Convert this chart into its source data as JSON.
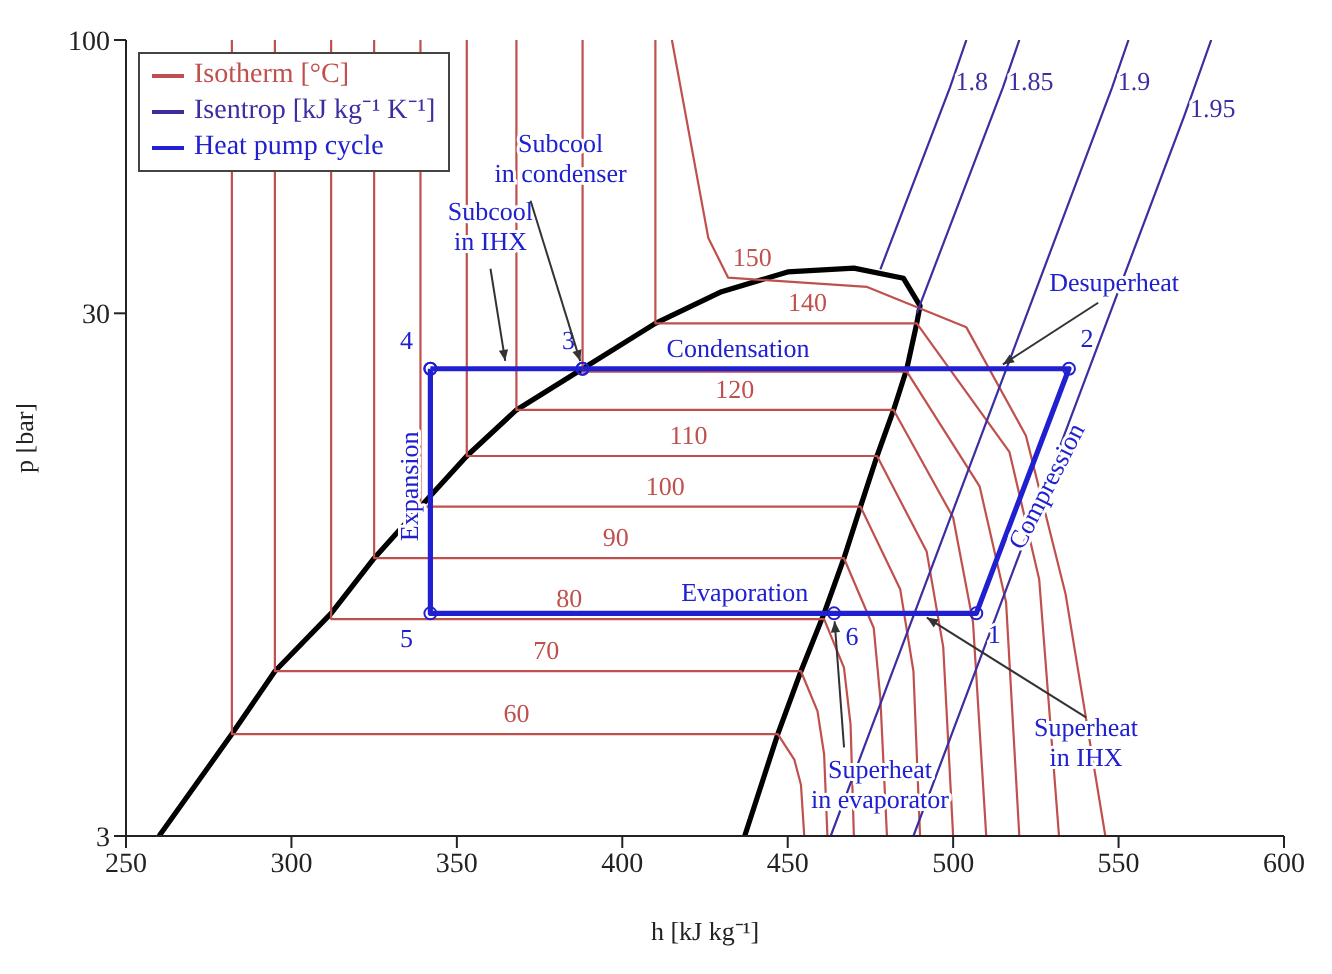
{
  "chart_data": {
    "type": "line",
    "xlabel": "h [kJ kg⁻¹]",
    "ylabel": "p [bar]",
    "xlim": [
      250,
      600
    ],
    "xticks": [
      250,
      300,
      350,
      400,
      450,
      500,
      550,
      600
    ],
    "ylim": [
      3,
      100
    ],
    "yticks": [
      3,
      30,
      100
    ],
    "log": "y",
    "grid": false,
    "legend": "top left",
    "line_style": "solid",
    "marker": "none",
    "series": [
      {
        "color": "#000000",
        "x": [
          260,
          282,
          295,
          312,
          325,
          339,
          353,
          368,
          388,
          410,
          430,
          450,
          470,
          485,
          490,
          489,
          486,
          482,
          477,
          472,
          467,
          461,
          454,
          447,
          437
        ],
        "values": [
          3,
          4.7,
          6.2,
          8,
          10.2,
          12.8,
          16,
          19.6,
          23.5,
          28.7,
          33,
          36,
          36.6,
          35,
          31,
          28.7,
          23.5,
          19.6,
          16,
          12.8,
          10.2,
          8,
          6.2,
          4.7,
          3
        ]
      },
      {
        "name": "Isotherm [°C]",
        "color": "#c0504d",
        "x": [
          282,
          282,
          368,
          447,
          452,
          454,
          455
        ],
        "values": [
          100,
          4.7,
          4.7,
          4.7,
          4.2,
          3.76,
          3
        ]
      },
      {
        "color": "#c0504d",
        "x": [
          295,
          295,
          377,
          454,
          459,
          461,
          462
        ],
        "values": [
          100,
          6.2,
          6.2,
          6.2,
          5.2,
          4.3,
          3
        ]
      },
      {
        "color": "#c0504d",
        "x": [
          312,
          312,
          384,
          461,
          467,
          469,
          470
        ],
        "values": [
          100,
          7.8,
          7.8,
          7.8,
          6.3,
          4.9,
          3
        ]
      },
      {
        "color": "#c0504d",
        "x": [
          325,
          325,
          398,
          467,
          476,
          478,
          480
        ],
        "values": [
          100,
          10.2,
          10.2,
          10.2,
          7.5,
          5.5,
          3
        ]
      },
      {
        "color": "#c0504d",
        "x": [
          339,
          339,
          413,
          472,
          484,
          488,
          490
        ],
        "values": [
          100,
          12.8,
          12.8,
          12.8,
          8.9,
          6.2,
          3
        ]
      },
      {
        "color": "#c0504d",
        "x": [
          353,
          353,
          420,
          477,
          492,
          497,
          500
        ],
        "values": [
          100,
          16,
          16,
          16,
          10.5,
          6.9,
          3
        ]
      },
      {
        "color": "#c0504d",
        "x": [
          368,
          368,
          434,
          482,
          500,
          506,
          510
        ],
        "values": [
          100,
          19.6,
          19.6,
          19.6,
          12.2,
          7.7,
          3
        ]
      },
      {
        "color": "#c0504d",
        "x": [
          388,
          388,
          486,
          508,
          516,
          520
        ],
        "values": [
          100,
          23.2,
          23.2,
          14,
          8.4,
          3
        ]
      },
      {
        "color": "#c0504d",
        "x": [
          410,
          410,
          456,
          489,
          517,
          526,
          532
        ],
        "values": [
          100,
          28.7,
          28.7,
          28.7,
          16.3,
          9.3,
          3
        ]
      },
      {
        "color": "#c0504d",
        "x": [
          415,
          426,
          432,
          474,
          504,
          522,
          534,
          546
        ],
        "values": [
          100,
          41.8,
          35.1,
          33.7,
          28.2,
          17.5,
          8.7,
          3
        ]
      },
      {
        "name": "Isentrop [kJ kg⁻¹ K⁻¹]",
        "color": "#3b2fa0",
        "x": [
          504,
          499,
          478
        ],
        "values": [
          100,
          81,
          36.4
        ]
      },
      {
        "color": "#3b2fa0",
        "x": [
          520,
          515,
          489
        ],
        "values": [
          100,
          81,
          30
        ]
      },
      {
        "color": "#3b2fa0",
        "x": [
          553,
          548,
          463
        ],
        "values": [
          100,
          81,
          3
        ]
      },
      {
        "color": "#3b2fa0",
        "x": [
          578,
          570,
          488
        ],
        "values": [
          100,
          72,
          3
        ]
      },
      {
        "name": "Heat pump cycle",
        "color": "#2020d0",
        "marker": "circle",
        "x": [
          342,
          342,
          464,
          507,
          535,
          388
        ],
        "values": [
          23.5,
          8,
          8,
          8,
          23.5,
          23.5
        ]
      },
      {
        "color": "#2020d0",
        "marker": "circle",
        "x": [
          388,
          342
        ],
        "values": [
          23.5,
          23.5
        ]
      }
    ],
    "annotations": [
      {
        "text": "Condensation",
        "x": 435,
        "y": 23.5
      },
      {
        "text": "Evaporation",
        "x": 437,
        "y": 8
      },
      {
        "text": "Expansion",
        "x": 342,
        "y": 14
      },
      {
        "text": "Compression",
        "x": 521,
        "y": 13.7
      },
      {
        "text": "1",
        "x": 507,
        "y": 8
      },
      {
        "text": "2",
        "x": 535,
        "y": 23.5
      },
      {
        "text": "3",
        "x": 388,
        "y": 23.5
      },
      {
        "text": "4",
        "x": 342,
        "y": 23.5
      },
      {
        "text": "5",
        "x": 342,
        "y": 8
      },
      {
        "text": "6",
        "x": 464,
        "y": 8
      },
      {
        "text": "60",
        "x": 368,
        "y": 4.7
      },
      {
        "text": "70",
        "x": 377,
        "y": 6.2
      },
      {
        "text": "80",
        "x": 384,
        "y": 7.8
      },
      {
        "text": "90",
        "x": 398,
        "y": 10.2
      },
      {
        "text": "100",
        "x": 413,
        "y": 12.8
      },
      {
        "text": "110",
        "x": 420,
        "y": 16
      },
      {
        "text": "120",
        "x": 434,
        "y": 19.6
      },
      {
        "text": "140",
        "x": 456,
        "y": 28.7
      },
      {
        "text": "150",
        "x": 432,
        "y": 35.1
      },
      {
        "text": "1.8",
        "x": 499,
        "y": 81
      },
      {
        "text": "1.85",
        "x": 515,
        "y": 81
      },
      {
        "text": "1.9",
        "x": 548,
        "y": 81
      },
      {
        "text": "1.95",
        "x": 570,
        "y": 72
      },
      {
        "text": "Subcool\nin IHX",
        "x": 365,
        "y": 23.5
      },
      {
        "text": "Subcool\nin condenser",
        "x": 388,
        "y": 23.5
      },
      {
        "text": "Desuperheat",
        "x": 513,
        "y": 23.5
      },
      {
        "text": "Superheat\nin IHX",
        "x": 490,
        "y": 8
      },
      {
        "text": "Superheat\nin evaporator",
        "x": 464,
        "y": 8
      }
    ]
  }
}
